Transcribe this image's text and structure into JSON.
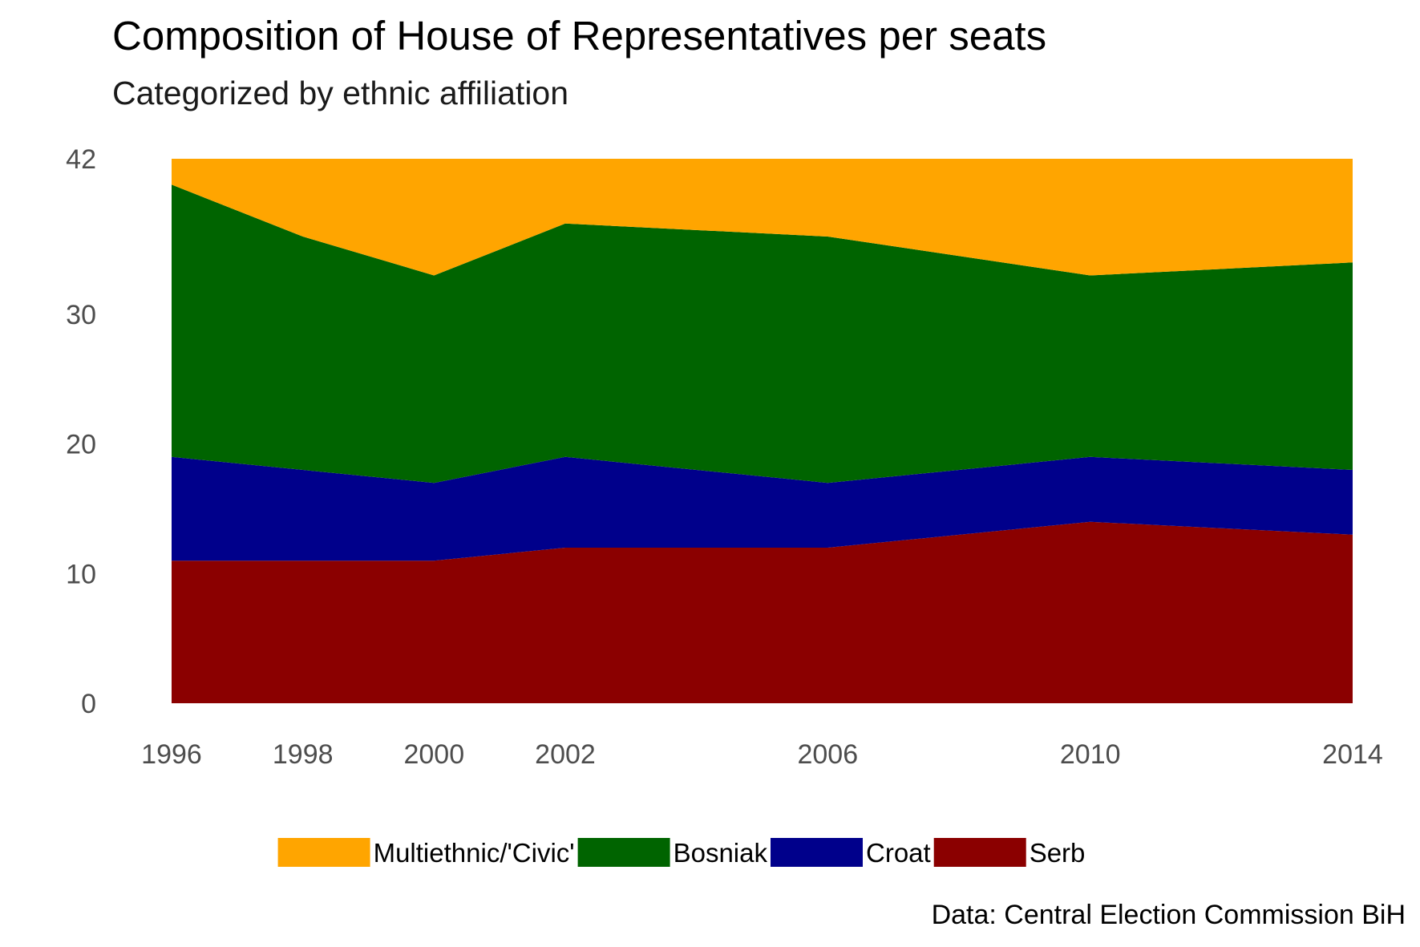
{
  "chart_data": {
    "type": "area",
    "stacked": true,
    "title": "Composition of House of Representatives per seats",
    "subtitle": "Categorized by ethnic affiliation",
    "caption": "Data: Central Election Commission BiH",
    "xlabel": "",
    "ylabel": "",
    "x": [
      1996,
      1998,
      2000,
      2002,
      2006,
      2010,
      2014
    ],
    "x_ticks": [
      "1996",
      "1998",
      "2000",
      "2002",
      "2006",
      "2010",
      "2014"
    ],
    "xlim": [
      1996,
      2014
    ],
    "y_ticks": [
      "0",
      "10",
      "20",
      "30",
      "42"
    ],
    "y_tick_values": [
      0,
      10,
      20,
      30,
      42
    ],
    "ylim": [
      0,
      42
    ],
    "grid": false,
    "legend_position": "bottom",
    "series": [
      {
        "name": "Serb",
        "color": "#8B0000",
        "values": [
          11,
          11,
          11,
          12,
          12,
          14,
          13
        ]
      },
      {
        "name": "Croat",
        "color": "#00008B",
        "values": [
          8,
          7,
          6,
          7,
          5,
          5,
          5
        ]
      },
      {
        "name": "Bosniak",
        "color": "#006400",
        "values": [
          21,
          18,
          16,
          18,
          19,
          14,
          16
        ]
      },
      {
        "name": "Multiethnic/'Civic'",
        "color": "#FFA500",
        "values": [
          2,
          6,
          9,
          5,
          6,
          9,
          8
        ]
      }
    ],
    "legend_order": [
      "Multiethnic/'Civic'",
      "Bosniak",
      "Croat",
      "Serb"
    ]
  }
}
